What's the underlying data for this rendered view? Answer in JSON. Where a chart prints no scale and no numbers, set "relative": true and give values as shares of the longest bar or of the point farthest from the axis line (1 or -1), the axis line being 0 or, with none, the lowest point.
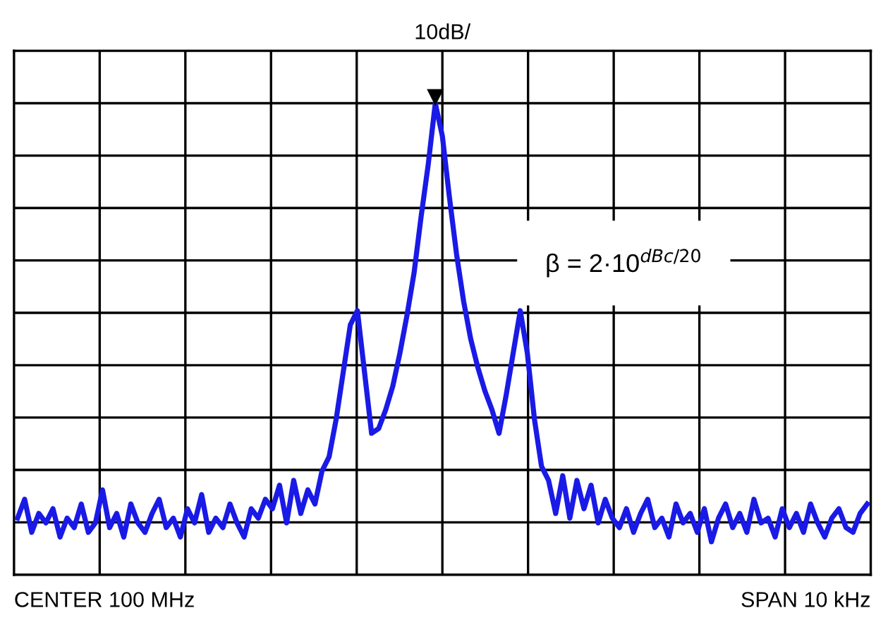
{
  "chart_data": {
    "type": "line",
    "title": "10dB/",
    "relative": true,
    "grid": true,
    "legend": false,
    "marker": "none",
    "line_style": "solid",
    "categories": [
      null,
      null,
      null,
      null,
      null,
      null,
      null,
      null,
      null,
      null,
      null,
      null,
      null,
      null,
      null,
      null,
      null,
      null,
      null,
      null,
      null,
      null,
      null,
      null,
      null,
      null,
      null,
      null,
      null,
      null,
      null,
      null,
      null,
      null,
      null,
      null,
      null,
      null,
      null,
      null,
      null,
      null,
      null,
      null,
      null,
      null,
      null,
      null,
      null,
      null,
      null,
      null,
      null,
      null,
      null,
      null,
      null,
      null,
      null,
      null,
      null,
      null,
      null,
      null,
      null,
      null,
      null,
      null,
      null,
      null,
      null,
      null,
      null,
      null,
      null,
      null,
      null,
      null,
      null,
      null,
      null,
      null,
      null,
      null,
      null,
      null,
      null,
      null,
      null,
      null,
      null,
      null,
      null,
      null,
      null,
      null,
      null,
      null,
      null,
      null,
      null,
      null,
      null,
      null,
      null,
      null,
      null,
      null,
      null,
      null,
      null,
      null,
      null,
      null,
      null,
      null,
      null,
      null,
      null,
      null,
      null
    ],
    "series": [
      {
        "color": "#1a1ae6",
        "values": [
          0.12,
          0.16,
          0.09,
          0.13,
          0.11,
          0.14,
          0.08,
          0.12,
          0.1,
          0.15,
          0.09,
          0.11,
          0.18,
          0.1,
          0.13,
          0.08,
          0.15,
          0.11,
          0.09,
          0.13,
          0.16,
          0.1,
          0.12,
          0.08,
          0.14,
          0.11,
          0.17,
          0.09,
          0.12,
          0.1,
          0.15,
          0.11,
          0.08,
          0.14,
          0.12,
          0.16,
          0.14,
          0.19,
          0.11,
          0.2,
          0.13,
          0.18,
          0.15,
          0.22,
          0.25,
          0.33,
          0.43,
          0.53,
          0.56,
          0.43,
          0.3,
          0.31,
          0.35,
          0.4,
          0.47,
          0.55,
          0.64,
          0.76,
          0.87,
          1.0,
          0.93,
          0.8,
          0.68,
          0.58,
          0.5,
          0.44,
          0.39,
          0.35,
          0.3,
          0.38,
          0.47,
          0.56,
          0.47,
          0.33,
          0.23,
          0.2,
          0.13,
          0.21,
          0.12,
          0.2,
          0.14,
          0.19,
          0.11,
          0.16,
          0.12,
          0.1,
          0.14,
          0.09,
          0.13,
          0.16,
          0.1,
          0.12,
          0.08,
          0.15,
          0.11,
          0.13,
          0.09,
          0.14,
          0.07,
          0.12,
          0.15,
          0.1,
          0.13,
          0.09,
          0.16,
          0.11,
          0.12,
          0.08,
          0.14,
          0.1,
          0.13,
          0.09,
          0.15,
          0.11,
          0.08,
          0.12,
          0.14,
          0.1,
          0.09,
          0.13,
          0.15
        ]
      }
    ],
    "annotations": [
      "β = 2·10$^{dBc/20}$",
      "CENTER 100 MHz",
      "SPAN 10 kHz"
    ]
  }
}
